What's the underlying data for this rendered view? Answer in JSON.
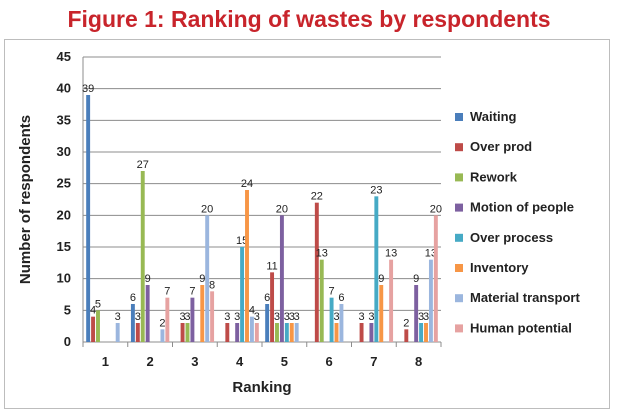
{
  "title": "Figure 1: Ranking of wastes by respondents",
  "chart_data": {
    "type": "bar",
    "categories": [
      "1",
      "2",
      "3",
      "4",
      "5",
      "6",
      "7",
      "8"
    ],
    "xlabel": "Ranking",
    "ylabel": "Number of respondents",
    "ylim": [
      0,
      45
    ],
    "yticks": [
      0,
      5,
      10,
      15,
      20,
      25,
      30,
      35,
      40,
      45
    ],
    "grid": true,
    "legend_position": "right",
    "series": [
      {
        "name": "Waiting",
        "color": "#4a7ebb",
        "values": [
          39,
          6,
          0,
          0,
          6,
          0,
          0,
          0
        ]
      },
      {
        "name": "Over prod",
        "color": "#be4b48",
        "values": [
          4,
          3,
          3,
          3,
          11,
          22,
          3,
          2
        ]
      },
      {
        "name": "Rework",
        "color": "#98b954",
        "values": [
          5,
          27,
          3,
          0,
          3,
          13,
          0,
          0
        ]
      },
      {
        "name": "Motion of people",
        "color": "#7d60a0",
        "values": [
          0,
          9,
          7,
          3,
          20,
          0,
          3,
          9
        ]
      },
      {
        "name": "Over process",
        "color": "#46aac5",
        "values": [
          0,
          0,
          0,
          15,
          3,
          7,
          23,
          3
        ]
      },
      {
        "name": "Inventory",
        "color": "#f79646",
        "values": [
          0,
          0,
          9,
          24,
          3,
          3,
          9,
          3
        ]
      },
      {
        "name": "Material transport",
        "color": "#9bb6de",
        "values": [
          3,
          2,
          20,
          4,
          3,
          6,
          0,
          13
        ]
      },
      {
        "name": "Human potential",
        "color": "#e6a2a1",
        "values": [
          0,
          7,
          8,
          3,
          0,
          0,
          13,
          20
        ]
      }
    ]
  }
}
